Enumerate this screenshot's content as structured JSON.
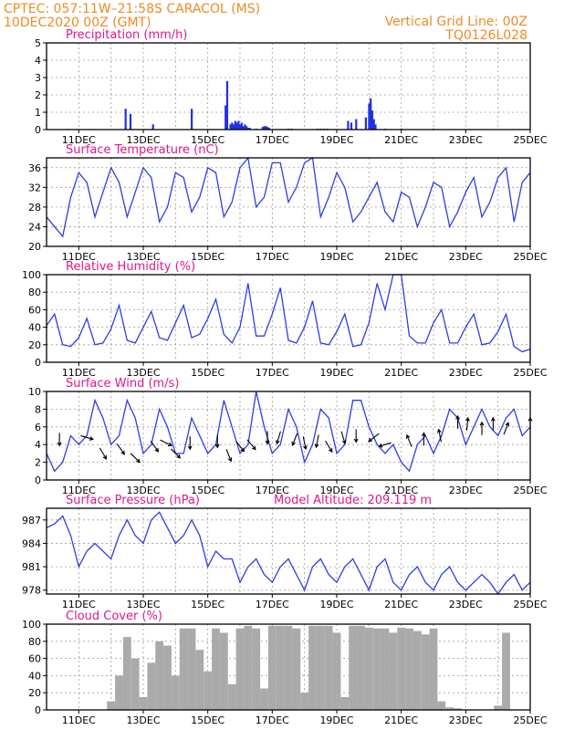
{
  "header": {
    "line1_left": "CPTEC:   057:11W–21:58S   CARACOL (MS)",
    "line2_left": "10DEC2020 00Z (GMT)",
    "line1_right": "Vertical Grid Line: 00Z",
    "line2_right": "TQ0126L028"
  },
  "colors": {
    "header": "#f08a24",
    "panel_title": "#e0168c",
    "series_line": "#2c3ee6",
    "precip_bar": "#2230e0",
    "cloud_bar": "#aaaaaa",
    "wind_arrow": "#000000",
    "grid": "#9a9a9a"
  },
  "chart_data": [
    {
      "id": "precip",
      "type": "bar",
      "title": "Precipitation (mm/h)",
      "x_tick_labels": [
        "11DEC",
        "13DEC",
        "15DEC",
        "17DEC",
        "19DEC",
        "21DEC",
        "23DEC",
        "25DEC"
      ],
      "ylim": [
        0,
        5
      ],
      "y_ticks": [
        0,
        1,
        2,
        3,
        4,
        5
      ],
      "grid": true,
      "x": [
        2.45,
        2.6,
        3.3,
        4.5,
        5.55,
        5.6,
        5.7,
        5.75,
        5.8,
        5.85,
        5.9,
        5.95,
        6.0,
        6.05,
        6.1,
        6.15,
        6.2,
        6.25,
        6.3,
        6.5,
        6.7,
        6.75,
        6.8,
        6.85,
        6.9,
        7.5,
        7.6,
        8.4,
        8.5,
        8.6,
        8.7,
        9.35,
        9.45,
        9.6,
        9.9,
        10.0,
        10.05,
        10.1,
        10.15,
        10.2,
        10.5,
        11.0,
        12.0
      ],
      "values": [
        1.2,
        0.9,
        0.3,
        1.2,
        1.4,
        2.8,
        0.3,
        0.4,
        0.3,
        0.5,
        0.4,
        0.5,
        0.3,
        0.4,
        0.2,
        0.3,
        0.2,
        0.1,
        0.1,
        0.05,
        0.15,
        0.2,
        0.2,
        0.15,
        0.1,
        0.05,
        0.05,
        0.05,
        0.05,
        0.05,
        0.05,
        0.5,
        0.4,
        0.6,
        0.7,
        1.5,
        1.8,
        1.1,
        0.6,
        0.3,
        0.05,
        0.05,
        0.05
      ]
    },
    {
      "id": "temperature",
      "type": "line",
      "title": "Surface Temperature (nC)",
      "x_tick_labels": [
        "11DEC",
        "13DEC",
        "15DEC",
        "17DEC",
        "19DEC",
        "21DEC",
        "23DEC",
        "25DEC"
      ],
      "ylim": [
        20,
        38
      ],
      "y_ticks": [
        20,
        24,
        28,
        32,
        36
      ],
      "grid": true,
      "x": [
        0,
        0.25,
        0.5,
        0.75,
        1,
        1.25,
        1.5,
        1.75,
        2,
        2.25,
        2.5,
        2.75,
        3,
        3.25,
        3.5,
        3.75,
        4,
        4.25,
        4.5,
        4.75,
        5,
        5.25,
        5.5,
        5.75,
        6,
        6.25,
        6.5,
        6.75,
        7,
        7.25,
        7.5,
        7.75,
        8,
        8.25,
        8.5,
        8.75,
        9,
        9.25,
        9.5,
        9.75,
        10,
        10.25,
        10.5,
        10.75,
        11,
        11.25,
        11.5,
        11.75,
        12,
        12.25,
        12.5,
        12.75,
        13,
        13.25,
        13.5,
        13.75,
        14,
        14.25,
        14.5,
        14.75,
        15
      ],
      "values": [
        26,
        24,
        22,
        30,
        35,
        33,
        26,
        31,
        36,
        33,
        26,
        31,
        36,
        34,
        25,
        28,
        35,
        34,
        27,
        30,
        36,
        35,
        26,
        29,
        36,
        38,
        28,
        30,
        37,
        37,
        29,
        32,
        37,
        38,
        26,
        30,
        35,
        32,
        25,
        27,
        30,
        33,
        27,
        25,
        31,
        30,
        24,
        28,
        33,
        32,
        24,
        27,
        31,
        34,
        26,
        29,
        34,
        36,
        25,
        33,
        35
      ]
    },
    {
      "id": "humidity",
      "type": "line",
      "title": "Relative Humidity (%)",
      "x_tick_labels": [
        "11DEC",
        "13DEC",
        "15DEC",
        "17DEC",
        "19DEC",
        "21DEC",
        "23DEC",
        "25DEC"
      ],
      "ylim": [
        0,
        100
      ],
      "y_ticks": [
        0,
        20,
        40,
        60,
        80,
        100
      ],
      "grid": true,
      "x": [
        0,
        0.25,
        0.5,
        0.75,
        1,
        1.25,
        1.5,
        1.75,
        2,
        2.25,
        2.5,
        2.75,
        3,
        3.25,
        3.5,
        3.75,
        4,
        4.25,
        4.5,
        4.75,
        5,
        5.25,
        5.5,
        5.75,
        6,
        6.25,
        6.5,
        6.75,
        7,
        7.25,
        7.5,
        7.75,
        8,
        8.25,
        8.5,
        8.75,
        9,
        9.25,
        9.5,
        9.75,
        10,
        10.25,
        10.5,
        10.75,
        11,
        11.25,
        11.5,
        11.75,
        12,
        12.25,
        12.5,
        12.75,
        13,
        13.25,
        13.5,
        13.75,
        14,
        14.25,
        14.5,
        14.75,
        15
      ],
      "values": [
        42,
        55,
        20,
        18,
        28,
        50,
        20,
        22,
        38,
        65,
        25,
        22,
        40,
        58,
        28,
        25,
        45,
        65,
        28,
        32,
        50,
        72,
        32,
        22,
        40,
        90,
        30,
        30,
        55,
        85,
        25,
        22,
        40,
        70,
        22,
        20,
        35,
        55,
        18,
        20,
        45,
        90,
        60,
        100,
        100,
        30,
        22,
        22,
        45,
        60,
        22,
        22,
        40,
        55,
        20,
        22,
        35,
        55,
        18,
        12,
        15
      ]
    },
    {
      "id": "wind",
      "type": "line",
      "title": "Surface Wind (m/s)",
      "x_tick_labels": [
        "11DEC",
        "13DEC",
        "15DEC",
        "17DEC",
        "19DEC",
        "21DEC",
        "23DEC",
        "25DEC"
      ],
      "ylim": [
        0,
        10
      ],
      "y_ticks": [
        0,
        2,
        4,
        6,
        8,
        10
      ],
      "grid": true,
      "x": [
        0,
        0.25,
        0.5,
        0.75,
        1,
        1.25,
        1.5,
        1.75,
        2,
        2.25,
        2.5,
        2.75,
        3,
        3.25,
        3.5,
        3.75,
        4,
        4.25,
        4.5,
        4.75,
        5,
        5.25,
        5.5,
        5.75,
        6,
        6.25,
        6.5,
        6.75,
        7,
        7.25,
        7.5,
        7.75,
        8,
        8.25,
        8.5,
        8.75,
        9,
        9.25,
        9.5,
        9.75,
        10,
        10.25,
        10.5,
        10.75,
        11,
        11.25,
        11.5,
        11.75,
        12,
        12.25,
        12.5,
        12.75,
        13,
        13.25,
        13.5,
        13.75,
        14,
        14.25,
        14.5,
        14.75,
        15
      ],
      "values": [
        3,
        1,
        2,
        5,
        4,
        5,
        9,
        7,
        4,
        5,
        9,
        7,
        3,
        4,
        8,
        6,
        3,
        3,
        7,
        5,
        3,
        4,
        9,
        6,
        3,
        4,
        10,
        6,
        3,
        4,
        8,
        6,
        2,
        4,
        8,
        7,
        3,
        4,
        9,
        9,
        6,
        4,
        3,
        4,
        2,
        1,
        4,
        5,
        3,
        5,
        8,
        7,
        4,
        6,
        8,
        6,
        5,
        7,
        8,
        5,
        6
      ],
      "arrows": [
        {
          "x": 0.4,
          "speed": 4.6,
          "u": 0,
          "v": -1
        },
        {
          "x": 1.25,
          "speed": 4.8,
          "u": 1,
          "v": -0.3
        },
        {
          "x": 1.75,
          "speed": 3.0,
          "u": 0.6,
          "v": -1
        },
        {
          "x": 2.3,
          "speed": 3.5,
          "u": 0.7,
          "v": -1
        },
        {
          "x": 2.75,
          "speed": 2.5,
          "u": 0.7,
          "v": -0.7
        },
        {
          "x": 3.35,
          "speed": 3.8,
          "u": 0.7,
          "v": -1
        },
        {
          "x": 3.7,
          "speed": 4.2,
          "u": 1,
          "v": -0.5
        },
        {
          "x": 4.0,
          "speed": 3.0,
          "u": 0.5,
          "v": -0.5
        },
        {
          "x": 4.45,
          "speed": 4.2,
          "u": 0,
          "v": -1
        },
        {
          "x": 5.3,
          "speed": 4.4,
          "u": 0,
          "v": -1
        },
        {
          "x": 5.65,
          "speed": 2.8,
          "u": 0.4,
          "v": -1
        },
        {
          "x": 6.0,
          "speed": 3.8,
          "u": 0.8,
          "v": -1
        },
        {
          "x": 6.35,
          "speed": 4.0,
          "u": 0.5,
          "v": -0.6
        },
        {
          "x": 6.85,
          "speed": 4.8,
          "u": 0,
          "v": -1
        },
        {
          "x": 7.2,
          "speed": 4.8,
          "u": -0.3,
          "v": -1
        },
        {
          "x": 7.7,
          "speed": 4.6,
          "u": -0.4,
          "v": -1
        },
        {
          "x": 8.0,
          "speed": 4.2,
          "u": 0.2,
          "v": -1
        },
        {
          "x": 8.4,
          "speed": 4.4,
          "u": -0.2,
          "v": -1
        },
        {
          "x": 8.75,
          "speed": 3.8,
          "u": 0.6,
          "v": -1
        },
        {
          "x": 9.2,
          "speed": 4.8,
          "u": 0.3,
          "v": -1
        },
        {
          "x": 9.6,
          "speed": 5.0,
          "u": 0,
          "v": -1
        },
        {
          "x": 10.15,
          "speed": 4.8,
          "u": -0.8,
          "v": -0.6
        },
        {
          "x": 10.5,
          "speed": 4.0,
          "u": -1,
          "v": -0.3
        },
        {
          "x": 11.25,
          "speed": 4.4,
          "u": -0.4,
          "v": 1
        },
        {
          "x": 11.7,
          "speed": 4.6,
          "u": 0,
          "v": 1
        },
        {
          "x": 12.2,
          "speed": 5.0,
          "u": -0.2,
          "v": 1
        },
        {
          "x": 12.75,
          "speed": 6.5,
          "u": 0,
          "v": 1
        },
        {
          "x": 13.05,
          "speed": 6.3,
          "u": 0.1,
          "v": 1
        },
        {
          "x": 13.5,
          "speed": 5.8,
          "u": 0,
          "v": 1
        },
        {
          "x": 13.85,
          "speed": 6.3,
          "u": 0,
          "v": 1
        },
        {
          "x": 14.25,
          "speed": 5.8,
          "u": 0.3,
          "v": 0.8
        },
        {
          "x": 15.0,
          "speed": 6.3,
          "u": 0,
          "v": 1
        }
      ]
    },
    {
      "id": "pressure",
      "type": "line",
      "title": "Surface Pressure (hPa)",
      "annotation": "Model Altitude: 209.119  m",
      "x_tick_labels": [
        "11DEC",
        "13DEC",
        "15DEC",
        "17DEC",
        "19DEC",
        "21DEC",
        "23DEC",
        "25DEC"
      ],
      "ylim": [
        977.5,
        988.5
      ],
      "y_ticks": [
        978,
        981,
        984,
        987
      ],
      "grid": true,
      "x": [
        0,
        0.25,
        0.5,
        0.75,
        1,
        1.25,
        1.5,
        1.75,
        2,
        2.25,
        2.5,
        2.75,
        3,
        3.25,
        3.5,
        3.75,
        4,
        4.25,
        4.5,
        4.75,
        5,
        5.25,
        5.5,
        5.75,
        6,
        6.25,
        6.5,
        6.75,
        7,
        7.25,
        7.5,
        7.75,
        8,
        8.25,
        8.5,
        8.75,
        9,
        9.25,
        9.5,
        9.75,
        10,
        10.25,
        10.5,
        10.75,
        11,
        11.25,
        11.5,
        11.75,
        12,
        12.25,
        12.5,
        12.75,
        13,
        13.25,
        13.5,
        13.75,
        14,
        14.25,
        14.5,
        14.75,
        15
      ],
      "values": [
        986,
        986.5,
        987.5,
        985,
        981,
        983,
        984,
        983,
        982,
        985,
        987,
        985,
        984,
        987,
        988,
        986,
        984,
        985,
        987,
        985,
        981,
        983,
        982,
        982,
        979,
        981,
        982,
        980,
        979,
        981,
        982,
        980,
        978,
        981,
        982,
        980,
        979,
        981,
        982,
        980,
        978,
        981,
        982,
        979,
        978,
        980,
        981,
        979,
        978,
        980,
        981,
        979,
        978,
        979,
        980,
        979,
        977.5,
        979,
        980,
        978,
        979
      ]
    },
    {
      "id": "cloud",
      "type": "area",
      "title": "Cloud Cover (%)",
      "x_tick_labels": [
        "11DEC",
        "13DEC",
        "15DEC",
        "17DEC",
        "19DEC",
        "21DEC",
        "23DEC",
        "25DEC"
      ],
      "ylim": [
        0,
        100
      ],
      "y_ticks": [
        0,
        20,
        40,
        60,
        80,
        100
      ],
      "grid": true,
      "x": [
        0,
        1.5,
        1.75,
        2,
        2.25,
        2.5,
        2.75,
        3,
        3.25,
        3.5,
        3.75,
        4,
        4.25,
        4.5,
        4.75,
        5,
        5.25,
        5.5,
        5.75,
        6,
        6.25,
        6.5,
        6.75,
        7,
        7.25,
        7.5,
        7.75,
        8,
        8.25,
        8.5,
        8.75,
        9,
        9.25,
        9.5,
        9.75,
        10,
        10.25,
        10.5,
        10.75,
        11,
        11.25,
        11.5,
        11.75,
        12,
        12.25,
        12.5,
        12.75,
        13,
        13.25,
        13.5,
        13.75,
        14,
        14.25,
        14.5,
        15
      ],
      "values": [
        0,
        0,
        0,
        10,
        40,
        85,
        60,
        15,
        55,
        80,
        75,
        40,
        95,
        95,
        70,
        45,
        95,
        90,
        30,
        95,
        98,
        95,
        25,
        98,
        98,
        98,
        95,
        20,
        98,
        98,
        98,
        90,
        15,
        98,
        98,
        96,
        95,
        95,
        90,
        96,
        95,
        92,
        88,
        95,
        10,
        3,
        2,
        0,
        0,
        0,
        0,
        5,
        90,
        0,
        0
      ]
    }
  ]
}
